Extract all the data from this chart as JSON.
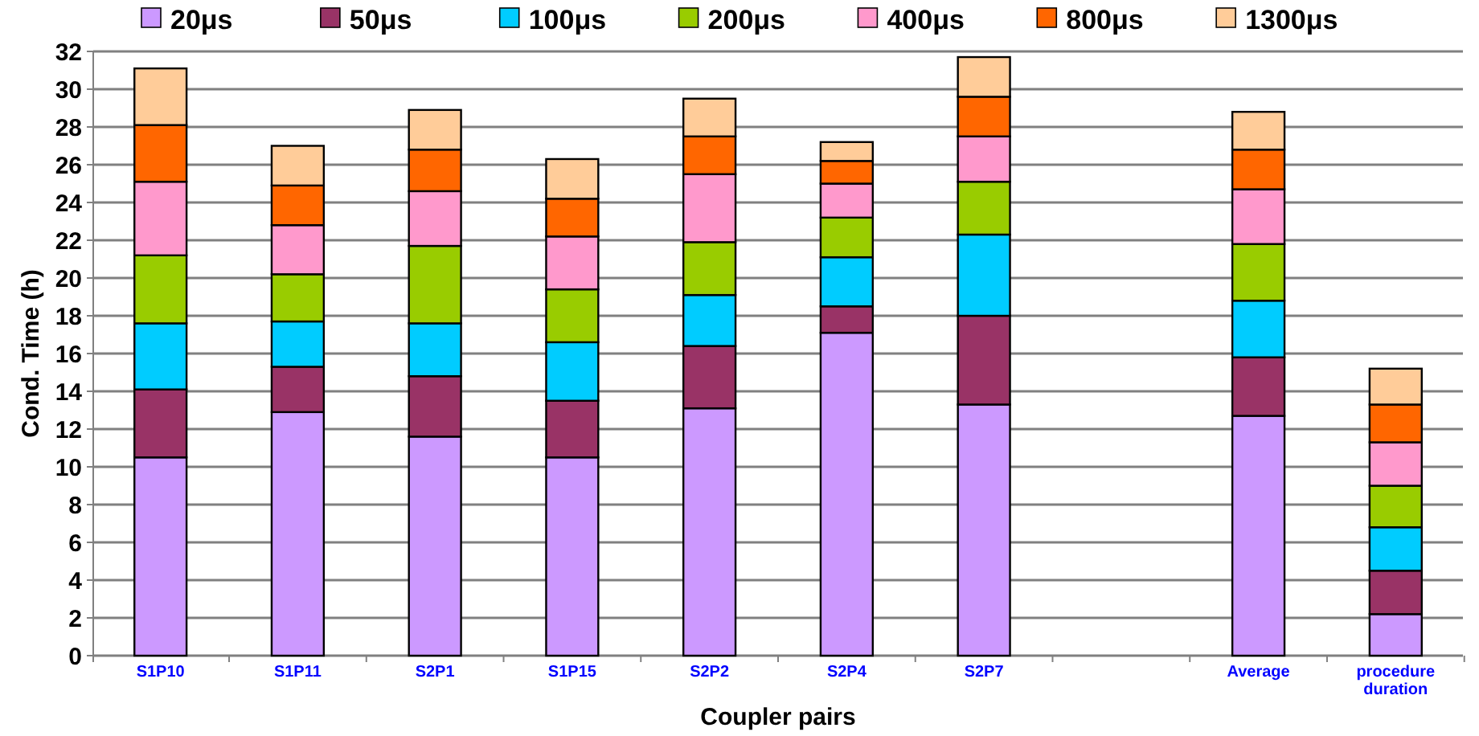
{
  "chart_data": {
    "type": "bar",
    "stacked": true,
    "xlabel": "Coupler pairs",
    "ylabel": "Cond. Time (h)",
    "categories": [
      "S1P10",
      "S1P11",
      "S2P1",
      "S1P15",
      "S2P2",
      "S2P4",
      "S2P7",
      null,
      "Average",
      "procedure duration"
    ],
    "ylim": [
      0,
      32
    ],
    "yticks": [
      0,
      2,
      4,
      6,
      8,
      10,
      12,
      14,
      16,
      18,
      20,
      22,
      24,
      26,
      28,
      30,
      32
    ],
    "grid": "y",
    "legend": "top",
    "series": [
      {
        "name": "20μs",
        "color": "#cc99ff",
        "values": [
          10.5,
          12.9,
          11.6,
          10.5,
          13.1,
          17.1,
          13.3,
          null,
          12.7,
          2.2
        ]
      },
      {
        "name": "50μs",
        "color": "#993366",
        "values": [
          3.6,
          2.4,
          3.2,
          3.0,
          3.3,
          1.4,
          4.7,
          null,
          3.1,
          2.3
        ]
      },
      {
        "name": "100μs",
        "color": "#00ccff",
        "values": [
          3.5,
          2.4,
          2.8,
          3.1,
          2.7,
          2.6,
          4.3,
          null,
          3.0,
          2.3
        ]
      },
      {
        "name": "200μs",
        "color": "#99cc00",
        "values": [
          3.6,
          2.5,
          4.1,
          2.8,
          2.8,
          2.1,
          2.8,
          null,
          3.0,
          2.2
        ]
      },
      {
        "name": "400μs",
        "color": "#ff99cc",
        "values": [
          3.9,
          2.6,
          2.9,
          2.8,
          3.6,
          1.8,
          2.4,
          null,
          2.9,
          2.3
        ]
      },
      {
        "name": "800μs",
        "color": "#ff6600",
        "values": [
          3.0,
          2.1,
          2.2,
          2.0,
          2.0,
          1.2,
          2.1,
          null,
          2.1,
          2.0
        ]
      },
      {
        "name": "1300μs",
        "color": "#ffcc99",
        "values": [
          3.0,
          2.1,
          2.1,
          2.1,
          2.0,
          1.0,
          2.1,
          null,
          2.0,
          1.9
        ]
      }
    ]
  }
}
